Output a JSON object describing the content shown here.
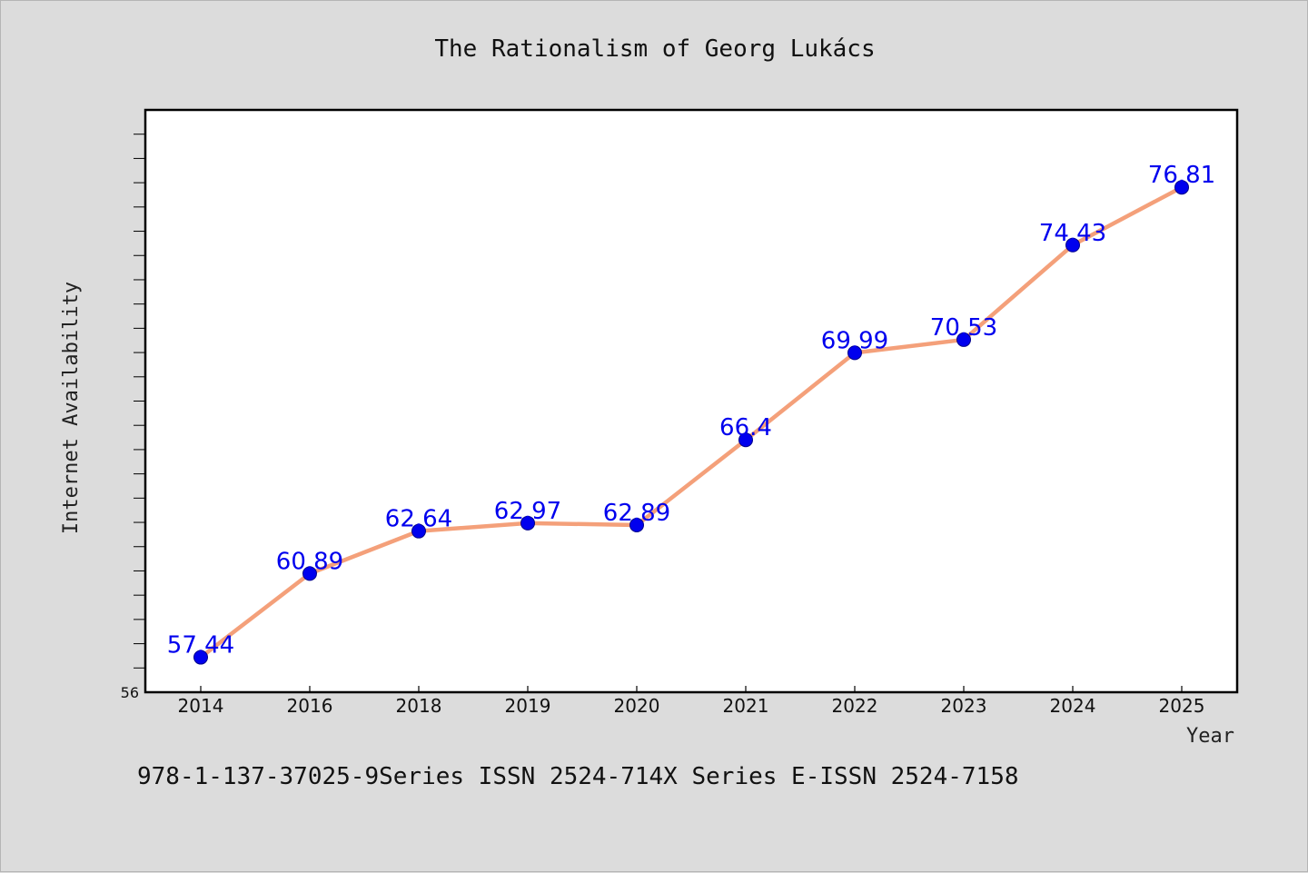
{
  "chart_data": {
    "type": "line",
    "title": "The Rationalism of Georg Lukács",
    "xlabel": "Year",
    "ylabel": "Internet Availability",
    "categories": [
      "2014",
      "2016",
      "2018",
      "2019",
      "2020",
      "2021",
      "2022",
      "2023",
      "2024",
      "2025"
    ],
    "series": [
      {
        "values": [
          57.44,
          60.89,
          62.64,
          62.97,
          62.89,
          66.4,
          69.99,
          70.53,
          74.43,
          76.81
        ],
        "data_labels": [
          "57.44",
          "60.89",
          "62.64",
          "62.97",
          "62.89",
          "66.4",
          "69.99",
          "70.53",
          "74.43",
          "76.81"
        ],
        "line_color": "#f4a07a",
        "marker_color": "#0000ee"
      }
    ],
    "ylim": [
      56,
      80
    ],
    "yticks_labeled": [
      "56"
    ],
    "grid": false,
    "legend": "none",
    "label_color": "#0000ee"
  },
  "footnote": "978-1-137-37025-9Series ISSN 2524-714X Series E-ISSN 2524-7158"
}
